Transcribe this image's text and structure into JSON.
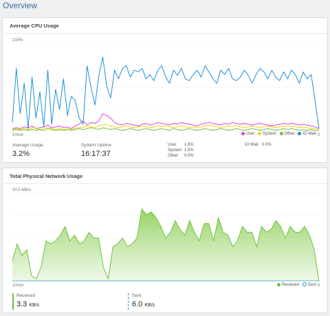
{
  "page": {
    "title": "Overview"
  },
  "cpu": {
    "title": "Average CPU Usage",
    "y_max_label": "100%",
    "x_left_label": "10min",
    "x_right_label": "0",
    "average_label": "Average Usage",
    "average_value": "3.2%",
    "uptime_label": "System Uptime",
    "uptime_value": "16:17:37",
    "breakdown": {
      "user_label": "User",
      "user_value": "1.8%",
      "system_label": "System",
      "system_value": "1.5%",
      "other_label": "Other",
      "other_value": "0.0%",
      "iowait_label": "IO Wait",
      "iowait_value": "0.0%"
    }
  },
  "network": {
    "title": "Total Physical Network Usage",
    "y_max_label": "30.5 MB/s",
    "x_left_label": "10min",
    "x_right_label": "0",
    "received_label": "Received",
    "received_value": "3.3",
    "received_unit": "KB/s",
    "sent_label": "Sent",
    "sent_value": "6.0",
    "sent_unit": "KB/s"
  },
  "chart_data": [
    {
      "type": "line",
      "title": "Average CPU Usage",
      "ylim": [
        0,
        100
      ],
      "x_range_label": [
        "10min",
        "0"
      ],
      "series": [
        {
          "name": "User",
          "color": "#e040d0",
          "values": [
            3,
            4,
            3,
            5,
            4,
            6,
            3,
            4,
            5,
            7,
            4,
            5,
            6,
            4,
            5,
            3,
            6,
            8,
            12,
            7,
            10,
            9,
            12,
            20,
            18,
            15,
            10,
            8,
            7,
            9,
            8,
            7,
            6,
            8,
            9,
            7,
            8,
            10,
            9,
            8,
            7,
            9,
            8,
            10,
            9,
            8,
            7,
            6,
            8,
            9,
            10,
            9,
            8,
            7,
            9,
            8,
            10,
            9,
            8,
            9,
            8,
            7,
            8,
            9,
            8,
            7,
            6,
            7,
            8,
            9,
            8,
            9,
            8,
            7,
            8,
            7,
            6,
            5,
            3
          ]
        },
        {
          "name": "System",
          "color": "#e8d800",
          "values": [
            2,
            3,
            2,
            3,
            2,
            4,
            3,
            2,
            3,
            4,
            3,
            2,
            3,
            2,
            3,
            2,
            3,
            4,
            5,
            6,
            5,
            4,
            6,
            7,
            8,
            6,
            5,
            4,
            5,
            6,
            5,
            4,
            5,
            6,
            5,
            4,
            5,
            6,
            5,
            6,
            5,
            4,
            5,
            6,
            5,
            4,
            5,
            4,
            5,
            6,
            7,
            6,
            5,
            4,
            5,
            6,
            5,
            6,
            5,
            4,
            5,
            6,
            5,
            4,
            5,
            6,
            5,
            4,
            5,
            6,
            5,
            6,
            5,
            4,
            5,
            4,
            3,
            3,
            2
          ]
        },
        {
          "name": "Other",
          "color": "#6cc23a",
          "values": [
            1,
            2,
            1,
            2,
            1,
            2,
            1,
            2,
            1,
            3,
            2,
            1,
            2,
            1,
            2,
            1,
            2,
            3,
            2,
            3,
            4,
            3,
            2,
            4,
            3,
            2,
            3,
            2,
            1,
            2,
            3,
            2,
            1,
            2,
            3,
            2,
            1,
            2,
            3,
            2,
            1,
            3,
            2,
            1,
            2,
            3,
            2,
            1,
            2,
            3,
            2,
            1,
            2,
            3,
            2,
            1,
            2,
            3,
            2,
            1,
            2,
            3,
            2,
            1,
            2,
            3,
            2,
            1,
            2,
            3,
            2,
            3,
            2,
            1,
            2,
            1,
            2,
            1,
            1
          ]
        },
        {
          "name": "IO Wait",
          "color": "#1c8fdc",
          "values": [
            10,
            72,
            20,
            55,
            3,
            62,
            15,
            45,
            5,
            70,
            8,
            48,
            25,
            60,
            18,
            40,
            35,
            15,
            8,
            75,
            50,
            30,
            64,
            85,
            52,
            38,
            70,
            60,
            72,
            75,
            62,
            70,
            68,
            72,
            60,
            65,
            58,
            70,
            75,
            62,
            55,
            70,
            64,
            72,
            60,
            58,
            65,
            70,
            62,
            75,
            68,
            60,
            55,
            70,
            65,
            72,
            60,
            58,
            62,
            70,
            64,
            55,
            65,
            72,
            68,
            60,
            70,
            62,
            58,
            68,
            60,
            70,
            65,
            55,
            68,
            60,
            65,
            35,
            3
          ]
        }
      ]
    },
    {
      "type": "area",
      "title": "Total Physical Network Usage",
      "y_label": "30.5 MB/s",
      "ylim": [
        0,
        30.5
      ],
      "x_range_label": [
        "10min",
        "0"
      ],
      "series": [
        {
          "name": "Received",
          "color": "#6cc23a",
          "values": [
            7,
            13,
            9,
            11,
            2,
            1,
            5,
            14,
            13,
            14,
            16,
            19,
            14,
            16,
            13,
            14,
            17,
            15,
            15,
            5,
            1,
            12,
            13,
            15,
            12,
            13,
            15,
            25,
            23,
            24,
            22,
            19,
            15,
            17,
            21,
            18,
            16,
            21,
            17,
            14,
            20,
            20,
            14,
            22,
            17,
            16,
            12,
            14,
            19,
            17,
            17,
            12,
            19,
            17,
            18,
            21,
            19,
            15,
            19,
            17,
            17,
            19,
            16,
            11,
            0
          ]
        },
        {
          "name": "Sent",
          "color": "#1c8fdc",
          "values": [
            0.3,
            0.3,
            0.3,
            0.3,
            0.3,
            0.3,
            0.3,
            0.3,
            0.3,
            0.3,
            0.3,
            0.3,
            0.3,
            0.3,
            0.3,
            0.3,
            0.3,
            0.3,
            0.3,
            0.3,
            0.3,
            0.3,
            0.3,
            0.3,
            0.3,
            0.3,
            0.3,
            0.3,
            0.3,
            0.3,
            0.3,
            0.3,
            0.3,
            0.3,
            0.3,
            0.3,
            0.3,
            0.3,
            0.3,
            0.3,
            0.3,
            0.3,
            0.3,
            0.3,
            0.3,
            0.3,
            0.3,
            0.3,
            0.3,
            0.3,
            0.3,
            0.3,
            0.3,
            0.3,
            0.3,
            0.3,
            0.3,
            0.3,
            0.3,
            0.3,
            0.3,
            0.3,
            0.3,
            0.3,
            0.3
          ]
        }
      ]
    }
  ]
}
